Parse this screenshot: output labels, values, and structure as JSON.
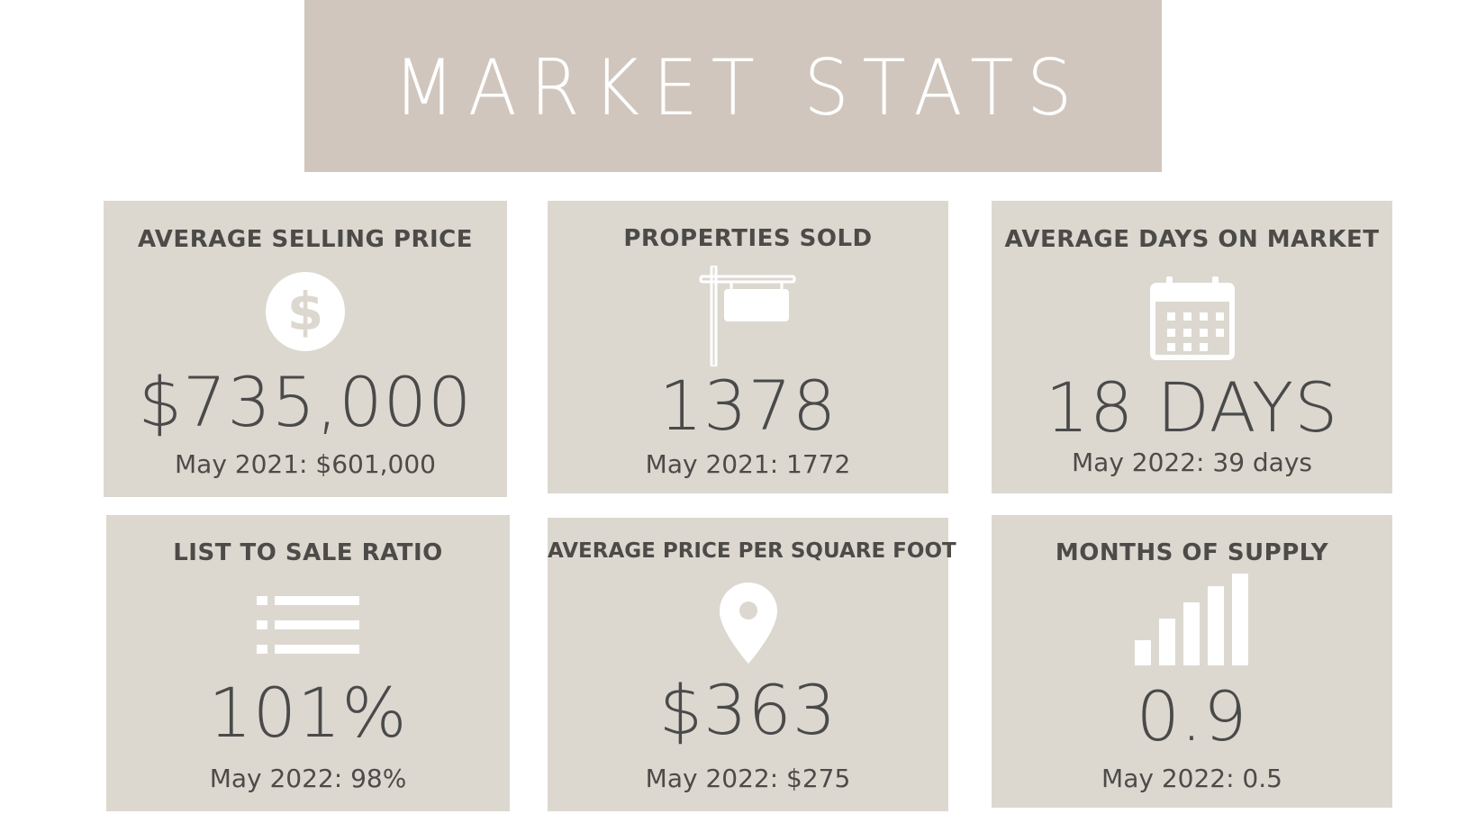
{
  "header": {
    "title": "MARKET STATS"
  },
  "colors": {
    "banner": "#d0c6bd",
    "card": "#dcd8d0",
    "text": "#4a4a4a",
    "icon": "#ffffff"
  },
  "cards": [
    {
      "label": "AVERAGE SELLING PRICE",
      "icon": "dollar-icon",
      "value": "$735,000",
      "compare": "May 2021: $601,000"
    },
    {
      "label": "PROPERTIES SOLD",
      "icon": "for-sale-sign-icon",
      "value": "1378",
      "compare": "May 2021: 1772"
    },
    {
      "label": "AVERAGE DAYS ON MARKET",
      "icon": "calendar-icon",
      "value": "18 DAYS",
      "compare": "May 2022: 39 days"
    },
    {
      "label": "LIST TO SALE RATIO",
      "icon": "list-icon",
      "value": "101%",
      "compare": "May 2022: 98%"
    },
    {
      "label": "AVERAGE PRICE PER SQUARE FOOT",
      "icon": "location-pin-icon",
      "value": "$363",
      "compare": "May 2022: $275"
    },
    {
      "label": "MONTHS OF SUPPLY",
      "icon": "signal-bars-icon",
      "value": "0.9",
      "compare": "May 2022: 0.5"
    }
  ]
}
